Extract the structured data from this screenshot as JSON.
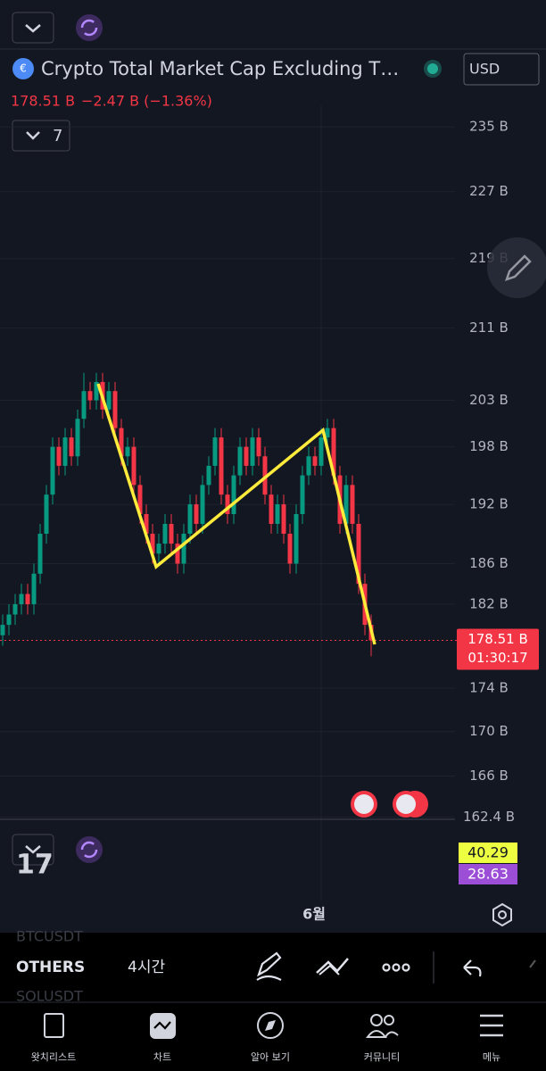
{
  "header": {
    "title": "Crypto Total Market Cap Excluding T…",
    "price": "178.51 B",
    "change": "−2.47 B (−1.36%)",
    "currency": "USD",
    "indicator_count": "7"
  },
  "chart_data": {
    "type": "candlestick",
    "log_scale": true,
    "grid": true,
    "up_color": "#089981",
    "down_color": "#f23645",
    "ylim": [
      162.2,
      236.6
    ],
    "yticks": [
      {
        "value": 235,
        "label": "235 B"
      },
      {
        "value": 227,
        "label": "227 B"
      },
      {
        "value": 219,
        "label": "219 B"
      },
      {
        "value": 211,
        "label": "211 B"
      },
      {
        "value": 203,
        "label": "203 B"
      },
      {
        "value": 198,
        "label": "198 B"
      },
      {
        "value": 192,
        "label": "192 B"
      },
      {
        "value": 186,
        "label": "186 B"
      },
      {
        "value": 182,
        "label": "182 B"
      },
      {
        "value": 174,
        "label": "174 B"
      },
      {
        "value": 170,
        "label": "170 B"
      },
      {
        "value": 166,
        "label": "166 B"
      },
      {
        "value": 162.4,
        "label": "162.4 B"
      }
    ],
    "last_price": {
      "value": 178.51,
      "label": "178.51 B"
    },
    "countdown": "01:30:17",
    "time_label": "6월",
    "candles": [
      [
        179,
        181,
        178,
        180
      ],
      [
        180,
        182,
        179,
        181
      ],
      [
        181,
        183,
        180,
        182
      ],
      [
        182,
        184,
        181,
        183
      ],
      [
        183,
        184,
        181,
        182
      ],
      [
        182,
        186,
        181,
        185
      ],
      [
        185,
        190,
        184,
        189
      ],
      [
        189,
        194,
        188,
        193
      ],
      [
        193,
        199,
        192,
        198
      ],
      [
        198,
        199,
        195,
        196
      ],
      [
        196,
        200,
        195,
        199
      ],
      [
        199,
        200,
        196,
        197
      ],
      [
        197,
        202,
        196,
        201
      ],
      [
        201,
        206,
        200,
        204
      ],
      [
        204,
        205,
        202,
        203
      ],
      [
        203,
        206,
        202,
        205
      ],
      [
        205,
        206,
        201,
        202
      ],
      [
        202,
        205,
        201,
        204
      ],
      [
        204,
        205,
        199,
        200
      ],
      [
        200,
        201,
        196,
        197
      ],
      [
        197,
        199,
        196,
        198
      ],
      [
        198,
        199,
        193,
        194
      ],
      [
        194,
        195,
        190,
        191
      ],
      [
        191,
        192,
        188,
        189
      ],
      [
        189,
        190,
        186,
        187
      ],
      [
        187,
        189,
        186,
        188
      ],
      [
        188,
        191,
        187,
        190
      ],
      [
        190,
        191,
        187,
        188
      ],
      [
        188,
        189,
        185,
        186
      ],
      [
        186,
        190,
        185,
        189
      ],
      [
        189,
        193,
        188,
        192
      ],
      [
        192,
        193,
        189,
        190
      ],
      [
        190,
        195,
        189,
        194
      ],
      [
        194,
        197,
        193,
        196
      ],
      [
        196,
        200,
        195,
        199
      ],
      [
        199,
        200,
        192,
        193
      ],
      [
        193,
        194,
        190,
        191
      ],
      [
        191,
        196,
        190,
        195
      ],
      [
        195,
        199,
        194,
        198
      ],
      [
        198,
        199,
        195,
        196
      ],
      [
        196,
        200,
        195,
        199
      ],
      [
        199,
        200,
        196,
        197
      ],
      [
        197,
        198,
        192,
        193
      ],
      [
        193,
        194,
        189,
        190
      ],
      [
        190,
        193,
        189,
        192
      ],
      [
        192,
        193,
        188,
        189
      ],
      [
        189,
        190,
        185,
        186
      ],
      [
        186,
        192,
        185,
        191
      ],
      [
        191,
        196,
        190,
        195
      ],
      [
        195,
        198,
        194,
        197
      ],
      [
        197,
        198,
        195,
        196
      ],
      [
        196,
        200,
        195,
        199
      ],
      [
        199,
        201,
        198,
        200
      ],
      [
        200,
        201,
        194,
        195
      ],
      [
        195,
        196,
        189,
        190
      ],
      [
        190,
        195,
        189,
        194
      ],
      [
        194,
        195,
        189,
        190
      ],
      [
        190,
        191,
        183,
        184
      ],
      [
        184,
        185,
        179,
        180
      ],
      [
        180,
        181,
        177,
        178.51
      ]
    ]
  },
  "indicator_pane": {
    "values": [
      "40.29",
      "28.63"
    ]
  },
  "background_symbols": [
    "BTCUSDT",
    "SOLUSDT"
  ],
  "toolbar": {
    "symbol": "OTHERS",
    "interval": "4시간"
  },
  "nav": [
    "왓치리스트",
    "차트",
    "알아 보기",
    "커뮤니티",
    "메뉴"
  ]
}
